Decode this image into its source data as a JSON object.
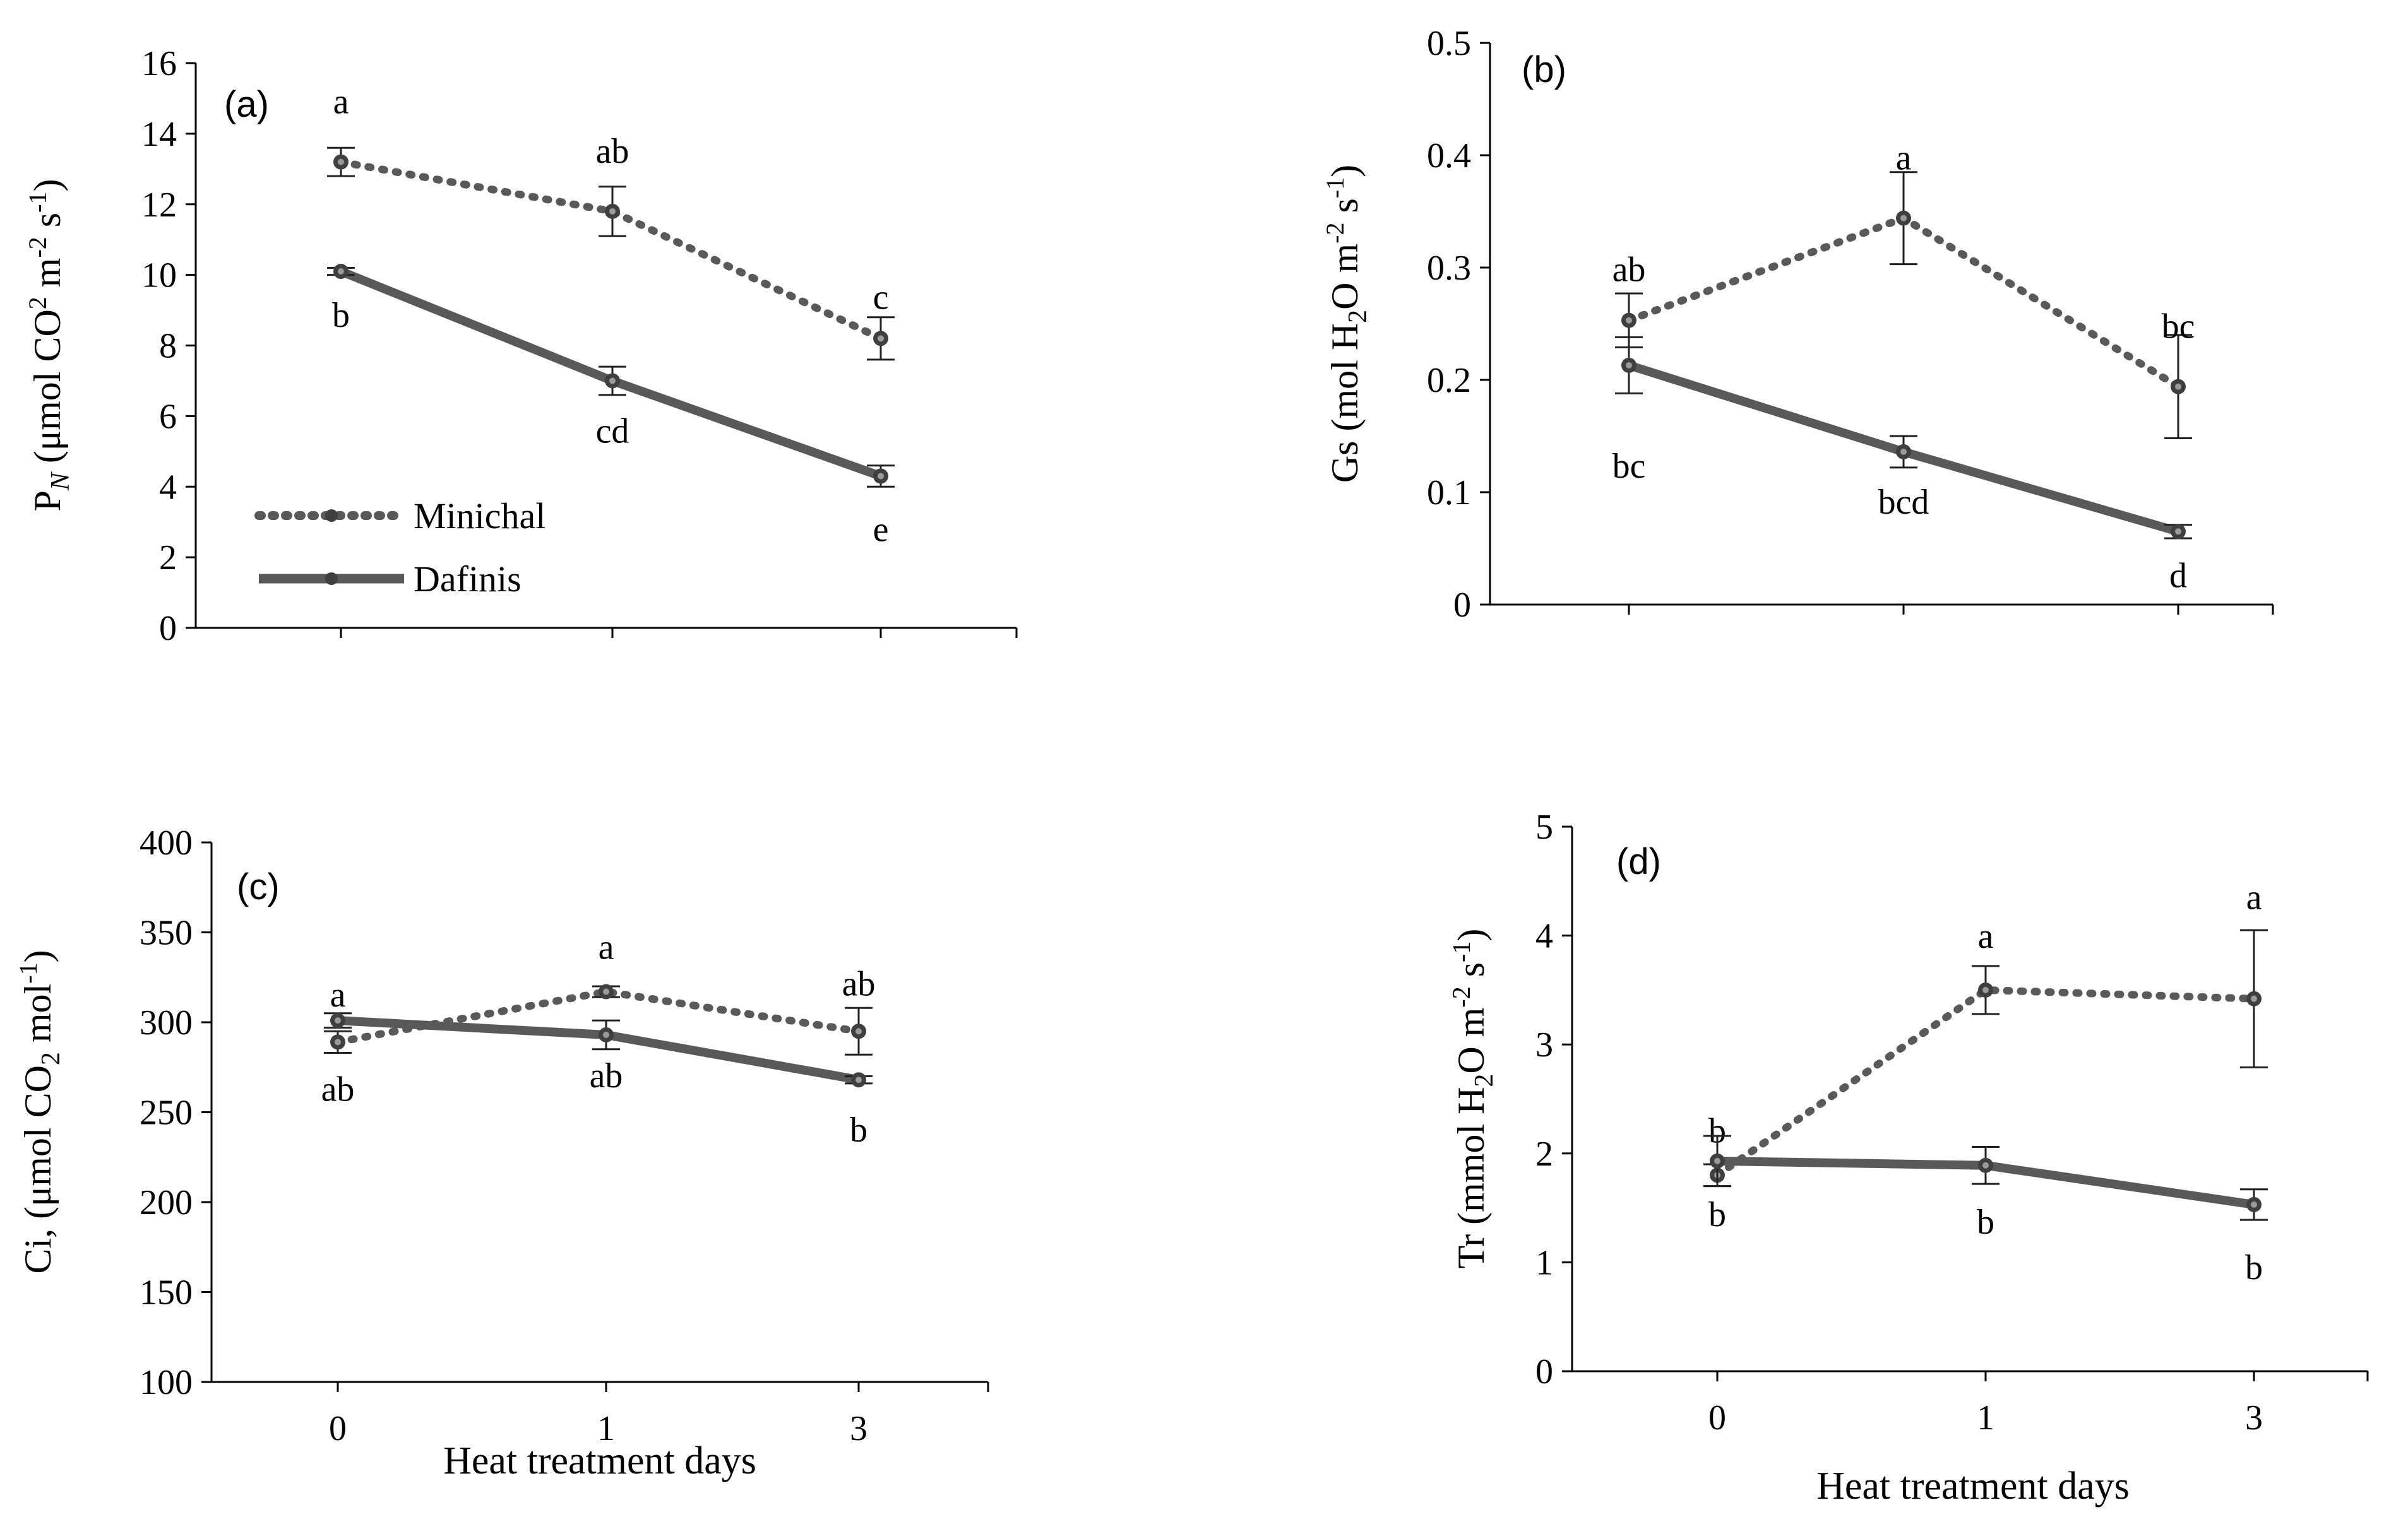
{
  "figure": {
    "xlabel": "Heat treatment days",
    "legend": [
      {
        "name": "Minichal",
        "style": "dotted"
      },
      {
        "name": "Dafinis",
        "style": "solid"
      }
    ]
  },
  "colors": {
    "line": "#595959",
    "marker": "#3f3f3f",
    "axis": "#000000"
  },
  "chart_data": [
    {
      "type": "line",
      "panel": "(a)",
      "ylabel_parts": {
        "p": "P",
        "sub": "N",
        "unit_start": " (μmol CO",
        "sup1": "2",
        "unit_mid": " m",
        "sup2": "-2",
        "unit_mid2": " s",
        "sup3": "-1",
        "unit_end": ")"
      },
      "categories": [
        "0",
        "1",
        "3"
      ],
      "ylim": [
        0,
        16
      ],
      "yticks": [
        "0",
        "2",
        "4",
        "6",
        "8",
        "10",
        "12",
        "14",
        "16"
      ],
      "series": [
        {
          "name": "Minichal",
          "values": [
            13.2,
            11.8,
            8.2
          ],
          "errors": [
            0.4,
            0.7,
            0.6
          ],
          "letters": [
            "a",
            "ab",
            "c"
          ]
        },
        {
          "name": "Dafinis",
          "values": [
            10.1,
            7.0,
            4.3
          ],
          "errors": [
            0.1,
            0.4,
            0.3
          ],
          "letters": [
            "b",
            "cd",
            "e"
          ]
        }
      ]
    },
    {
      "type": "line",
      "panel": "(b)",
      "ylabel_parts": {
        "p": "Gs (mol H",
        "sub": "2",
        "unit_start": "O m",
        "sup1": "-2",
        "unit_mid": " s",
        "sup2": "-1",
        "unit_mid2": ")",
        "sup3": "",
        "unit_end": ""
      },
      "categories": [
        "0",
        "1",
        "3"
      ],
      "ylim": [
        0,
        0.5
      ],
      "yticks": [
        "0",
        "0.1",
        "0.2",
        "0.3",
        "0.4",
        "0.5"
      ],
      "series": [
        {
          "name": "Minichal",
          "values": [
            0.253,
            0.344,
            0.194
          ],
          "errors": [
            0.024,
            0.041,
            0.046
          ],
          "letters": [
            "ab",
            "a",
            "bc"
          ]
        },
        {
          "name": "Dafinis",
          "values": [
            0.213,
            0.136,
            0.065
          ],
          "errors": [
            0.025,
            0.014,
            0.006
          ],
          "letters": [
            "bc",
            "bcd",
            "d"
          ]
        }
      ]
    },
    {
      "type": "line",
      "panel": "(c)",
      "ylabel_parts": {
        "p": "Ci, (μmol CO",
        "sub": "2",
        "unit_start": " mol",
        "sup1": "-1",
        "unit_mid": ")",
        "sup2": "",
        "unit_mid2": "",
        "sup3": "",
        "unit_end": ""
      },
      "categories": [
        "0",
        "1",
        "3"
      ],
      "ylim": [
        100,
        400
      ],
      "yticks": [
        "100",
        "150",
        "200",
        "250",
        "300",
        "350",
        "400"
      ],
      "series": [
        {
          "name": "Minichal",
          "values": [
            289,
            317,
            295
          ],
          "errors": [
            6,
            3,
            13
          ],
          "letters": [
            "ab",
            "a",
            "ab"
          ]
        },
        {
          "name": "Dafinis",
          "values": [
            301,
            293,
            268
          ],
          "errors": [
            4,
            8,
            2
          ],
          "letters": [
            "a",
            "ab",
            "b"
          ]
        }
      ]
    },
    {
      "type": "line",
      "panel": "(d)",
      "ylabel_parts": {
        "p": "Tr  (mmol H",
        "sub": "2",
        "unit_start": "O m",
        "sup1": "-2",
        "unit_mid": " s",
        "sup2": "-1",
        "unit_mid2": ")",
        "sup3": "",
        "unit_end": ""
      },
      "categories": [
        "0",
        "1",
        "3"
      ],
      "ylim": [
        0,
        5
      ],
      "yticks": [
        "0",
        "1",
        "2",
        "3",
        "4",
        "5"
      ],
      "series": [
        {
          "name": "Minichal",
          "values": [
            1.8,
            3.5,
            3.42
          ],
          "errors": [
            0.1,
            0.22,
            0.63
          ],
          "letters": [
            "b",
            "a",
            "a"
          ]
        },
        {
          "name": "Dafinis",
          "values": [
            1.93,
            1.89,
            1.53
          ],
          "errors": [
            0.23,
            0.17,
            0.14
          ],
          "letters": [
            "b",
            "b",
            "b"
          ]
        }
      ]
    }
  ]
}
